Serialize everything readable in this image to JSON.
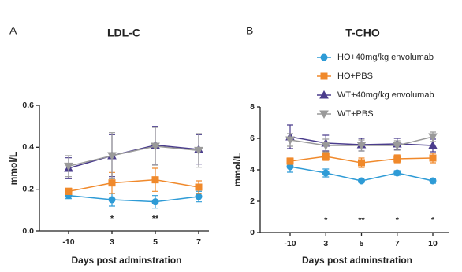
{
  "chart_data": [
    {
      "type": "line",
      "panel": "A",
      "title": "LDL-C",
      "x_label": "Days post adminstration",
      "y_label": "mmol/L",
      "categories": [
        "-10",
        "3",
        "5",
        "7"
      ],
      "ylim": [
        0,
        0.6
      ],
      "yticks": [
        {
          "value": 0,
          "label": "0.0"
        },
        0.2,
        0.4,
        0.6
      ],
      "series": [
        {
          "color": "#2e9bd6",
          "marker": "circle",
          "values": [
            0.17,
            0.15,
            0.14,
            0.165
          ],
          "errors": [
            0.015,
            0.03,
            0.03,
            0.025
          ]
        },
        {
          "color": "#f0892b",
          "marker": "square",
          "values": [
            0.19,
            0.23,
            0.245,
            0.21
          ],
          "errors": [
            0.015,
            0.05,
            0.055,
            0.03
          ]
        },
        {
          "color": "#4a3c8c",
          "marker": "triangle-up",
          "values": [
            0.3,
            0.36,
            0.41,
            0.39
          ],
          "errors": [
            0.05,
            0.1,
            0.09,
            0.07
          ]
        },
        {
          "color": "#9a9a9a",
          "marker": "triangle-down",
          "values": [
            0.31,
            0.36,
            0.405,
            0.385
          ],
          "errors": [
            0.05,
            0.11,
            0.09,
            0.08
          ]
        }
      ],
      "annotations": [
        {
          "x": "3",
          "text": "*"
        },
        {
          "x": "5",
          "text": "**"
        }
      ]
    },
    {
      "type": "line",
      "panel": "B",
      "title": "T-CHO",
      "x_label": "Days post adminstration",
      "y_label": "mmol/L",
      "categories": [
        "-10",
        "3",
        "5",
        "7",
        "10"
      ],
      "ylim": [
        0,
        8
      ],
      "yticks": [
        0,
        2,
        4,
        6,
        8
      ],
      "legend": "upper right",
      "series": [
        {
          "name": "HO+40mg/kg envolumab",
          "color": "#2e9bd6",
          "marker": "circle",
          "values": [
            4.2,
            3.8,
            3.3,
            3.8,
            3.3
          ],
          "errors": [
            0.35,
            0.25,
            0.1,
            0.15,
            0.15
          ]
        },
        {
          "name": "HO+PBS",
          "color": "#f0892b",
          "marker": "square",
          "values": [
            4.55,
            4.85,
            4.45,
            4.7,
            4.75
          ],
          "errors": [
            0.2,
            0.25,
            0.3,
            0.25,
            0.3
          ]
        },
        {
          "name": "WT+40mg/kg envolumab",
          "color": "#4a3c8c",
          "marker": "triangle-up",
          "values": [
            6.1,
            5.7,
            5.6,
            5.65,
            5.55
          ],
          "errors": [
            0.75,
            0.5,
            0.4,
            0.35,
            0.4
          ]
        },
        {
          "name": "WT+PBS",
          "color": "#9a9a9a",
          "marker": "triangle-down",
          "values": [
            5.9,
            5.55,
            5.55,
            5.55,
            6.1
          ],
          "errors": [
            0.4,
            0.4,
            0.35,
            0.3,
            0.3
          ]
        }
      ],
      "annotations": [
        {
          "x": "3",
          "text": "*"
        },
        {
          "x": "5",
          "text": "**"
        },
        {
          "x": "7",
          "text": "*"
        },
        {
          "x": "10",
          "text": "*"
        }
      ]
    }
  ]
}
